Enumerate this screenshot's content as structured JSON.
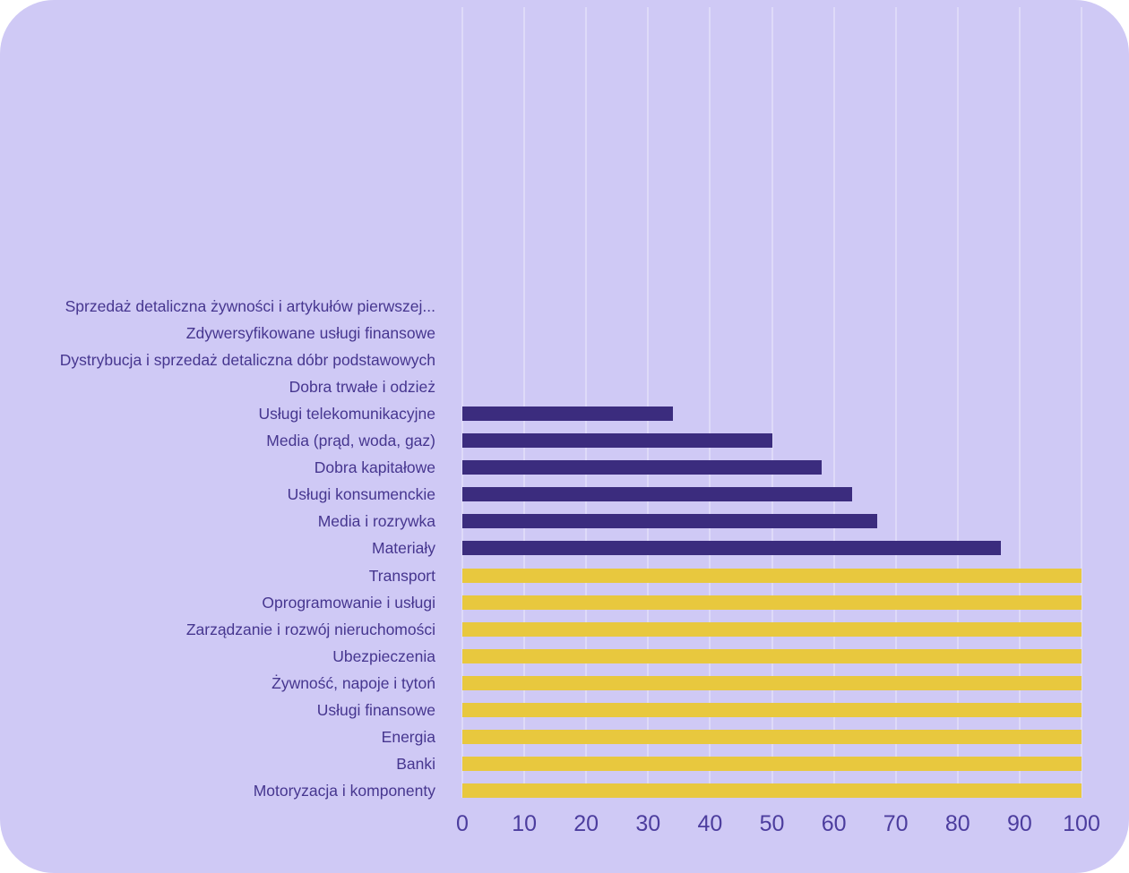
{
  "card": {
    "background_color": "#CFC9F5",
    "outer_background_color": "#ffffff"
  },
  "chart_data": {
    "type": "bar",
    "orientation": "horizontal",
    "title": "",
    "xlabel": "",
    "ylabel": "",
    "categories": [
      "Sprzedaż detaliczna żywności i artykułów pierwszej...",
      "Zdywersyfikowane usługi finansowe",
      "Dystrybucja i sprzedaż detaliczna dóbr podstawowych",
      "Dobra trwałe i odzież",
      "Usługi telekomunikacyjne",
      "Media (prąd, woda, gaz)",
      "Dobra kapitałowe",
      "Usługi konsumenckie",
      "Media i rozrywka",
      "Materiały",
      "Transport",
      "Oprogramowanie i usługi",
      "Zarządzanie i rozwój nieruchomości",
      "Ubezpieczenia",
      "Żywność, napoje i tytoń",
      "Usługi finansowe",
      "Energia",
      "Banki",
      "Motoryzacja i komponenty"
    ],
    "values": [
      0,
      0,
      0,
      0,
      34,
      50,
      58,
      63,
      67,
      87,
      100,
      100,
      100,
      100,
      100,
      100,
      100,
      100,
      100
    ],
    "bar_colors": [
      "#3B2C7E",
      "#3B2C7E",
      "#3B2C7E",
      "#3B2C7E",
      "#3B2C7E",
      "#3B2C7E",
      "#3B2C7E",
      "#3B2C7E",
      "#3B2C7E",
      "#3B2C7E",
      "#E8C83E",
      "#E8C83E",
      "#E8C83E",
      "#E8C83E",
      "#E8C83E",
      "#E8C83E",
      "#E8C83E",
      "#E8C83E",
      "#E8C83E"
    ],
    "xlim": [
      0,
      100
    ],
    "xticks": [
      0,
      10,
      20,
      30,
      40,
      50,
      60,
      70,
      80,
      90,
      100
    ],
    "grid": "vertical gridlines at every x tick",
    "legend": "none",
    "colors": {
      "partial_bar": "#3B2C7E",
      "full_bar": "#E8C83E",
      "label_text": "#46368F",
      "tick_text": "#4C3D9E",
      "gridline": "#DEDAF8",
      "plot_background": "#CFC9F5"
    }
  }
}
